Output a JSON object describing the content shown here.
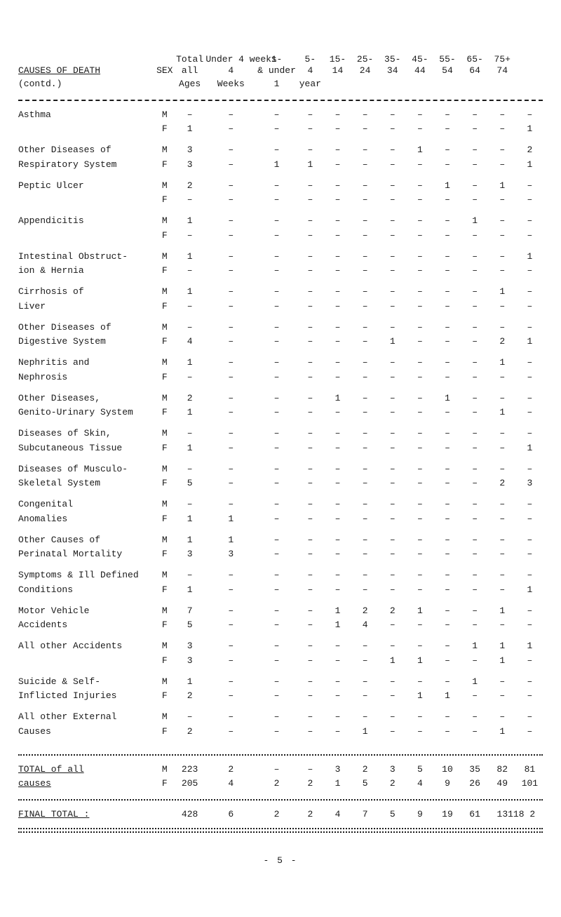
{
  "title_left_line1": "CAUSES OF DEATH",
  "title_left_line2": "(contd.)",
  "sex_label": "SEX",
  "col_headers": {
    "total_top": "Total",
    "total_bot": "all",
    "total_3": "Ages",
    "c1_top": "Under 4 weeks",
    "c1_bot": "4",
    "c1_3": "Weeks",
    "c2_top": "1-",
    "c2_bot": "& under",
    "c2_3": "1",
    "c3_top": "5-",
    "c3_bot": "4",
    "c3_3": "year",
    "c4_top": "15-",
    "c4_bot": "14",
    "c5_top": "25-",
    "c5_bot": "24",
    "c6_top": "35-",
    "c6_bot": "34",
    "c7_top": "45-",
    "c7_bot": "44",
    "c8_top": "55-",
    "c8_bot": "54",
    "c9_top": "65-",
    "c9_bot": "64",
    "c10_top": "75+",
    "c10_bot": "74"
  },
  "dash": "–",
  "rows": [
    {
      "cause": "Asthma",
      "causeL2": "",
      "sex": "M",
      "v": [
        "-",
        "-",
        "-",
        "-",
        "-",
        "-",
        "-",
        "-",
        "-",
        "-",
        "-",
        "-"
      ]
    },
    {
      "cause": "",
      "causeL2": "",
      "sex": "F",
      "v": [
        "1",
        "-",
        "-",
        "-",
        "-",
        "-",
        "-",
        "-",
        "-",
        "-",
        "-",
        "1"
      ]
    },
    {
      "cause": "Other Diseases of",
      "causeL2": "Respiratory System",
      "sex": "M",
      "v": [
        "3",
        "-",
        "-",
        "-",
        "-",
        "-",
        "-",
        "1",
        "-",
        "-",
        "-",
        "2"
      ]
    },
    {
      "cause": "",
      "causeL2": "",
      "sex": "F",
      "v": [
        "3",
        "-",
        "1",
        "1",
        "-",
        "-",
        "-",
        "-",
        "-",
        "-",
        "-",
        "1"
      ]
    },
    {
      "cause": "Peptic Ulcer",
      "causeL2": "",
      "sex": "M",
      "v": [
        "2",
        "-",
        "-",
        "-",
        "-",
        "-",
        "-",
        "-",
        "1",
        "-",
        "1",
        "-"
      ]
    },
    {
      "cause": "",
      "causeL2": "",
      "sex": "F",
      "v": [
        "-",
        "-",
        "-",
        "-",
        "-",
        "-",
        "-",
        "-",
        "-",
        "-",
        "-",
        "-"
      ]
    },
    {
      "cause": "Appendicitis",
      "causeL2": "",
      "sex": "M",
      "v": [
        "1",
        "-",
        "-",
        "-",
        "-",
        "-",
        "-",
        "-",
        "-",
        "1",
        "-",
        "-"
      ]
    },
    {
      "cause": "",
      "causeL2": "",
      "sex": "F",
      "v": [
        "-",
        "-",
        "-",
        "-",
        "-",
        "-",
        "-",
        "-",
        "-",
        "-",
        "-",
        "-"
      ]
    },
    {
      "cause": "Intestinal Obstruct-",
      "causeL2": "ion & Hernia",
      "sex": "M",
      "v": [
        "1",
        "-",
        "-",
        "-",
        "-",
        "-",
        "-",
        "-",
        "-",
        "-",
        "-",
        "1"
      ]
    },
    {
      "cause": "",
      "causeL2": "",
      "sex": "F",
      "v": [
        "-",
        "-",
        "-",
        "-",
        "-",
        "-",
        "-",
        "-",
        "-",
        "-",
        "-",
        "-"
      ]
    },
    {
      "cause": "Cirrhosis of",
      "causeL2": "Liver",
      "sex": "M",
      "v": [
        "1",
        "-",
        "-",
        "-",
        "-",
        "-",
        "-",
        "-",
        "-",
        "-",
        "1",
        "-"
      ]
    },
    {
      "cause": "",
      "causeL2": "",
      "sex": "F",
      "v": [
        "-",
        "-",
        "-",
        "-",
        "-",
        "-",
        "-",
        "-",
        "-",
        "-",
        "-",
        "-"
      ]
    },
    {
      "cause": "Other Diseases of",
      "causeL2": "Digestive System",
      "sex": "M",
      "v": [
        "-",
        "-",
        "-",
        "-",
        "-",
        "-",
        "-",
        "-",
        "-",
        "-",
        "-",
        "-"
      ]
    },
    {
      "cause": "",
      "causeL2": "",
      "sex": "F",
      "v": [
        "4",
        "-",
        "-",
        "-",
        "-",
        "-",
        "1",
        "-",
        "-",
        "-",
        "2",
        "1"
      ]
    },
    {
      "cause": "Nephritis and",
      "causeL2": "Nephrosis",
      "sex": "M",
      "v": [
        "1",
        "-",
        "-",
        "-",
        "-",
        "-",
        "-",
        "-",
        "-",
        "-",
        "1",
        "-"
      ]
    },
    {
      "cause": "",
      "causeL2": "",
      "sex": "F",
      "v": [
        "-",
        "-",
        "-",
        "-",
        "-",
        "-",
        "-",
        "-",
        "-",
        "-",
        "-",
        "-"
      ]
    },
    {
      "cause": "Other Diseases,",
      "causeL2": "Genito-Urinary System",
      "sex": "M",
      "v": [
        "2",
        "-",
        "-",
        "-",
        "1",
        "-",
        "-",
        "-",
        "1",
        "-",
        "-",
        "-"
      ]
    },
    {
      "cause": "",
      "causeL2": "",
      "sex": "F",
      "v": [
        "1",
        "-",
        "-",
        "-",
        "-",
        "-",
        "-",
        "-",
        "-",
        "-",
        "1",
        "-"
      ]
    },
    {
      "cause": "Diseases of Skin,",
      "causeL2": "Subcutaneous Tissue",
      "sex": "M",
      "v": [
        "-",
        "-",
        "-",
        "-",
        "-",
        "-",
        "-",
        "-",
        "-",
        "-",
        "-",
        "-"
      ]
    },
    {
      "cause": "",
      "causeL2": "",
      "sex": "F",
      "v": [
        "1",
        "-",
        "-",
        "-",
        "-",
        "-",
        "-",
        "-",
        "-",
        "-",
        "-",
        "1"
      ]
    },
    {
      "cause": "Diseases of Musculo-",
      "causeL2": "Skeletal System",
      "sex": "M",
      "v": [
        "-",
        "-",
        "-",
        "-",
        "-",
        "-",
        "-",
        "-",
        "-",
        "-",
        "-",
        "-"
      ]
    },
    {
      "cause": "",
      "causeL2": "",
      "sex": "F",
      "v": [
        "5",
        "-",
        "-",
        "-",
        "-",
        "-",
        "-",
        "-",
        "-",
        "-",
        "2",
        "3"
      ]
    },
    {
      "cause": "Congenital",
      "causeL2": "Anomalies",
      "sex": "M",
      "v": [
        "-",
        "-",
        "-",
        "-",
        "-",
        "-",
        "-",
        "-",
        "-",
        "-",
        "-",
        "-"
      ]
    },
    {
      "cause": "",
      "causeL2": "",
      "sex": "F",
      "v": [
        "1",
        "1",
        "-",
        "-",
        "-",
        "-",
        "-",
        "-",
        "-",
        "-",
        "-",
        "-"
      ]
    },
    {
      "cause": "Other Causes of",
      "causeL2": "Perinatal Mortality",
      "sex": "M",
      "v": [
        "1",
        "1",
        "-",
        "-",
        "-",
        "-",
        "-",
        "-",
        "-",
        "-",
        "-",
        "-"
      ]
    },
    {
      "cause": "",
      "causeL2": "",
      "sex": "F",
      "v": [
        "3",
        "3",
        "-",
        "-",
        "-",
        "-",
        "-",
        "-",
        "-",
        "-",
        "-",
        "-"
      ]
    },
    {
      "cause": "Symptoms & Ill Defined",
      "causeL2": "Conditions",
      "sex": "M",
      "v": [
        "-",
        "-",
        "-",
        "-",
        "-",
        "-",
        "-",
        "-",
        "-",
        "-",
        "-",
        "-"
      ]
    },
    {
      "cause": "",
      "causeL2": "",
      "sex": "F",
      "v": [
        "1",
        "-",
        "-",
        "-",
        "-",
        "-",
        "-",
        "-",
        "-",
        "-",
        "-",
        "1"
      ]
    },
    {
      "cause": "Motor Vehicle",
      "causeL2": "Accidents",
      "sex": "M",
      "v": [
        "7",
        "-",
        "-",
        "-",
        "1",
        "2",
        "2",
        "1",
        "-",
        "-",
        "1",
        "-"
      ]
    },
    {
      "cause": "",
      "causeL2": "",
      "sex": "F",
      "v": [
        "5",
        "-",
        "-",
        "-",
        "1",
        "4",
        "-",
        "-",
        "-",
        "-",
        "-",
        "-"
      ]
    },
    {
      "cause": "All other Accidents",
      "causeL2": "",
      "sex": "M",
      "v": [
        "3",
        "-",
        "-",
        "-",
        "-",
        "-",
        "-",
        "-",
        "-",
        "1",
        "1",
        "1"
      ]
    },
    {
      "cause": "",
      "causeL2": "",
      "sex": "F",
      "v": [
        "3",
        "-",
        "-",
        "-",
        "-",
        "-",
        "1",
        "1",
        "-",
        "-",
        "1",
        "-"
      ]
    },
    {
      "cause": "Suicide & Self-",
      "causeL2": "Inflicted Injuries",
      "sex": "M",
      "v": [
        "1",
        "-",
        "-",
        "-",
        "-",
        "-",
        "-",
        "-",
        "-",
        "1",
        "-",
        "-"
      ]
    },
    {
      "cause": "",
      "causeL2": "",
      "sex": "F",
      "v": [
        "2",
        "-",
        "-",
        "-",
        "-",
        "-",
        "-",
        "1",
        "1",
        "-",
        "-",
        "-"
      ]
    },
    {
      "cause": "All other External",
      "causeL2": "Causes",
      "sex": "M",
      "v": [
        "-",
        "-",
        "-",
        "-",
        "-",
        "-",
        "-",
        "-",
        "-",
        "-",
        "-",
        "-"
      ]
    },
    {
      "cause": "",
      "causeL2": "",
      "sex": "F",
      "v": [
        "2",
        "-",
        "-",
        "-",
        "-",
        "1",
        "-",
        "-",
        "-",
        "-",
        "1",
        "-"
      ]
    }
  ],
  "totals_label_top": "TOTAL of all",
  "totals_label_sub": "causes",
  "totals_M": [
    "223",
    "2",
    "-",
    "-",
    "3",
    "2",
    "3",
    "5",
    "10",
    "35",
    "82",
    "81"
  ],
  "totals_F": [
    "205",
    "4",
    "2",
    "2",
    "1",
    "5",
    "2",
    "4",
    "9",
    "26",
    "49",
    "101"
  ],
  "final_label": "FINAL TOTAL :",
  "final": [
    "428",
    "6",
    "2",
    "2",
    "4",
    "7",
    "5",
    "9",
    "19",
    "61",
    "131",
    "182"
  ],
  "page_marker": "- 5 -",
  "last_two_merge_final": "13118 2"
}
